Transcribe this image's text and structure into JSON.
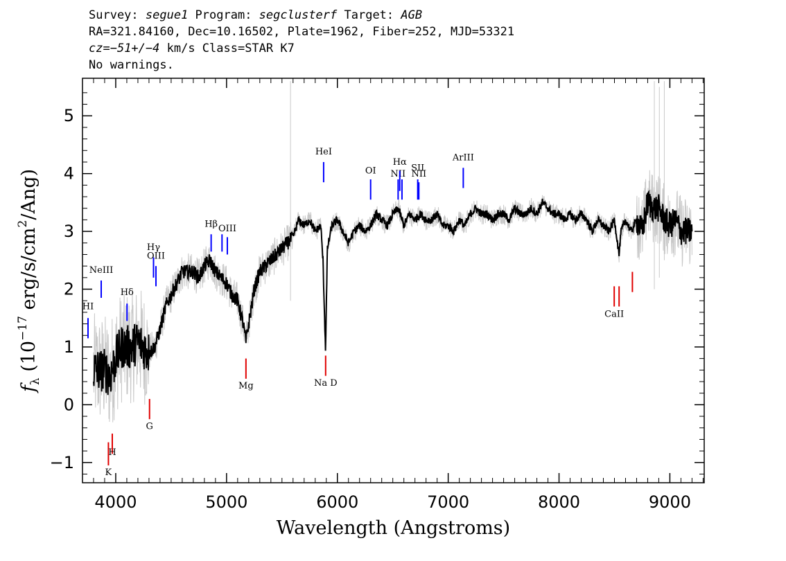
{
  "header": {
    "line1": {
      "survey_label": "Survey: ",
      "survey": "segue1",
      "program_label": " Program: ",
      "program": "segclusterf",
      "target_label": " Target: ",
      "target": "AGB"
    },
    "line2": "RA=321.84160, Dec=10.16502, Plate=1962, Fiber=252, MJD=53321",
    "line3": {
      "cz_label": "cz=",
      "cz_value": "−51+/−4",
      "cz_rest": " km/s Class=STAR K7"
    },
    "line4": "No warnings."
  },
  "chart_data": {
    "type": "line",
    "xlabel": "Wavelength (Angstroms)",
    "ylabel": "fλ (10⁻¹⁷ erg/s/cm²/Ang)",
    "xlim": [
      3700,
      9310
    ],
    "ylim": [
      -1.35,
      5.65
    ],
    "x_ticks": [
      4000,
      5000,
      6000,
      7000,
      8000,
      9000
    ],
    "y_ticks": [
      -1,
      0,
      1,
      2,
      3,
      4,
      5
    ],
    "grid": false,
    "series": [
      {
        "color": "#000000",
        "x": [
          3800,
          3850,
          3900,
          3950,
          4000,
          4050,
          4100,
          4150,
          4200,
          4250,
          4300,
          4350,
          4400,
          4450,
          4500,
          4550,
          4600,
          4650,
          4700,
          4750,
          4800,
          4850,
          4900,
          4950,
          5000,
          5050,
          5100,
          5150,
          5175,
          5200,
          5250,
          5300,
          5350,
          5400,
          5450,
          5500,
          5550,
          5600,
          5650,
          5700,
          5750,
          5800,
          5850,
          5870,
          5893,
          5910,
          5950,
          6000,
          6050,
          6100,
          6150,
          6200,
          6250,
          6300,
          6350,
          6400,
          6450,
          6500,
          6550,
          6600,
          6650,
          6700,
          6750,
          6800,
          6850,
          6900,
          6950,
          7000,
          7050,
          7100,
          7150,
          7200,
          7250,
          7300,
          7350,
          7400,
          7450,
          7500,
          7550,
          7600,
          7650,
          7700,
          7750,
          7800,
          7850,
          7900,
          7950,
          8000,
          8050,
          8100,
          8150,
          8200,
          8250,
          8300,
          8350,
          8400,
          8450,
          8500,
          8542,
          8560,
          8600,
          8650,
          8700,
          8750,
          8800,
          8850,
          8900,
          8950,
          9000,
          9050,
          9100,
          9150,
          9200
        ],
        "y": [
          0.6,
          0.6,
          0.6,
          0.5,
          0.8,
          1.0,
          1.0,
          1.0,
          1.1,
          1.0,
          0.9,
          1.0,
          1.3,
          1.7,
          1.9,
          2.1,
          2.3,
          2.3,
          2.3,
          2.2,
          2.4,
          2.5,
          2.3,
          2.2,
          2.1,
          1.9,
          1.8,
          1.4,
          1.1,
          1.4,
          2.0,
          2.3,
          2.4,
          2.5,
          2.6,
          2.7,
          2.8,
          2.9,
          3.2,
          3.1,
          3.2,
          3.0,
          3.1,
          2.5,
          0.95,
          2.7,
          3.1,
          3.2,
          3.0,
          2.8,
          3.0,
          3.1,
          3.0,
          3.1,
          3.3,
          3.2,
          3.1,
          3.3,
          3.4,
          3.1,
          3.3,
          3.2,
          3.3,
          3.2,
          3.2,
          3.3,
          3.1,
          3.1,
          3.0,
          3.2,
          3.1,
          3.3,
          3.4,
          3.3,
          3.3,
          3.2,
          3.3,
          3.3,
          3.2,
          3.4,
          3.3,
          3.3,
          3.4,
          3.3,
          3.5,
          3.4,
          3.3,
          3.3,
          3.2,
          3.3,
          3.2,
          3.3,
          3.2,
          3.0,
          3.2,
          3.1,
          3.0,
          3.2,
          2.6,
          3.0,
          3.2,
          3.0,
          3.2,
          3.0,
          3.5,
          3.4,
          3.4,
          3.2,
          3.1,
          3.2,
          3.0,
          3.0,
          3.0
        ]
      }
    ],
    "noise_band_color": "#c8c8c8",
    "emission_lines": [
      {
        "label": "HI",
        "x": 3750,
        "y_bottom": 1.15,
        "y_top": 1.5,
        "label_y": 1.65,
        "color": "#0000ff"
      },
      {
        "label": "NeIII",
        "x": 3869,
        "y_bottom": 1.85,
        "y_top": 2.15,
        "label_y": 2.28,
        "color": "#0000ff"
      },
      {
        "label": "Hδ",
        "x": 4102,
        "y_bottom": 1.45,
        "y_top": 1.75,
        "label_y": 1.9,
        "color": "#0000ff"
      },
      {
        "label": "Hγ",
        "x": 4341,
        "y_bottom": 2.2,
        "y_top": 2.55,
        "label_y": 2.68,
        "color": "#0000ff"
      },
      {
        "label": "OIII",
        "x": 4363,
        "y_bottom": 2.05,
        "y_top": 2.4,
        "label_y": 2.53,
        "color": "#0000ff"
      },
      {
        "label": "Hβ",
        "x": 4861,
        "y_bottom": 2.65,
        "y_top": 2.95,
        "label_y": 3.08,
        "color": "#0000ff"
      },
      {
        "label": "",
        "x": 4959,
        "y_bottom": 2.65,
        "y_top": 2.95,
        "label_y": null,
        "color": "#0000ff"
      },
      {
        "label": "OIII",
        "x": 5007,
        "y_bottom": 2.6,
        "y_top": 2.9,
        "label_y": 3.0,
        "color": "#0000ff"
      },
      {
        "label": "HeI",
        "x": 5876,
        "y_bottom": 3.85,
        "y_top": 4.2,
        "label_y": 4.33,
        "color": "#0000ff"
      },
      {
        "label": "OI",
        "x": 6300,
        "y_bottom": 3.55,
        "y_top": 3.9,
        "label_y": 4.0,
        "color": "#0000ff"
      },
      {
        "label": "NII",
        "x": 6548,
        "y_bottom": 3.55,
        "y_top": 3.9,
        "label_y": 3.95,
        "color": "#0000ff"
      },
      {
        "label": "Hα",
        "x": 6563,
        "y_bottom": 3.7,
        "y_top": 4.05,
        "label_y": 4.15,
        "color": "#0000ff"
      },
      {
        "label": "NII",
        "x": 6583,
        "y_bottom": 3.55,
        "y_top": 3.9,
        "label_y": null,
        "color": "#0000ff"
      },
      {
        "label": "SII",
        "x": 6725,
        "y_bottom": 3.55,
        "y_top": 3.9,
        "label_y": 4.05,
        "color": "#0000ff"
      },
      {
        "label": "NII",
        "x": 6735,
        "y_bottom": 3.55,
        "y_top": 3.85,
        "label_y": 3.95,
        "color": "#0000ff"
      },
      {
        "label": "ArIII",
        "x": 7136,
        "y_bottom": 3.75,
        "y_top": 4.1,
        "label_y": 4.23,
        "color": "#0000ff"
      }
    ],
    "absorption_lines": [
      {
        "label": "K",
        "x": 3934,
        "y_bottom": -1.05,
        "y_top": -0.65,
        "label_y": -1.22,
        "color": "#e00000"
      },
      {
        "label": "H",
        "x": 3969,
        "y_bottom": -0.85,
        "y_top": -0.5,
        "label_y": -0.87,
        "color": "#e00000"
      },
      {
        "label": "G",
        "x": 4305,
        "y_bottom": -0.25,
        "y_top": 0.1,
        "label_y": -0.42,
        "color": "#e00000"
      },
      {
        "label": "Mg",
        "x": 5175,
        "y_bottom": 0.45,
        "y_top": 0.8,
        "label_y": 0.28,
        "color": "#e00000"
      },
      {
        "label": "Na D",
        "x": 5894,
        "y_bottom": 0.5,
        "y_top": 0.85,
        "label_y": 0.33,
        "color": "#e00000"
      },
      {
        "label": "CaII",
        "x": 8498,
        "y_bottom": 1.7,
        "y_top": 2.05,
        "label_y": 1.52,
        "color": "#e00000"
      },
      {
        "label": "",
        "x": 8542,
        "y_bottom": 1.7,
        "y_top": 2.05,
        "label_y": null,
        "color": "#e00000"
      },
      {
        "label": "",
        "x": 8662,
        "y_bottom": 1.95,
        "y_top": 2.3,
        "label_y": null,
        "color": "#e00000"
      }
    ]
  }
}
